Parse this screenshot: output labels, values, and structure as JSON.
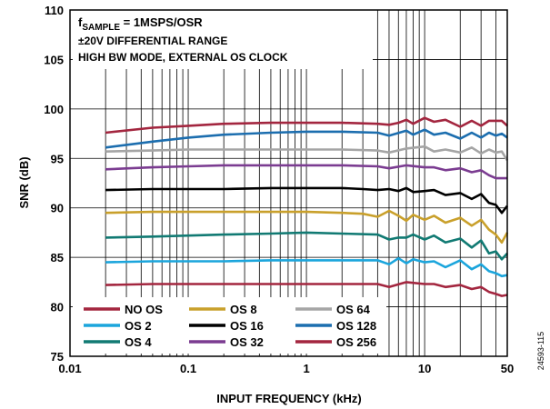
{
  "chart_data": {
    "type": "line",
    "annotation": {
      "line1_prefix": "f",
      "line1_sub": "SAMPLE",
      "line1_rest": " = 1MSPS/OSR",
      "line2": "±20V DIFFERENTIAL RANGE",
      "line3": "HIGH BW MODE, EXTERNAL OS CLOCK"
    },
    "xlabel": "INPUT FREQUENCY (kHz)",
    "ylabel": "SNR (dB)",
    "x_scale": "log",
    "xlim": [
      0.01,
      50
    ],
    "ylim": [
      75,
      110
    ],
    "x_ticks": [
      {
        "value": 0.01,
        "label": "0.01"
      },
      {
        "value": 0.1,
        "label": "0.1"
      },
      {
        "value": 1,
        "label": "1"
      },
      {
        "value": 10,
        "label": "10"
      },
      {
        "value": 50,
        "label": "50"
      }
    ],
    "y_ticks": [
      75,
      80,
      85,
      90,
      95,
      100,
      105,
      110
    ],
    "grid": true,
    "watermark": "24593-115",
    "legend": {
      "placement": "bottom-left",
      "columns": 3
    },
    "series": [
      {
        "name": "NO OS",
        "color": "#a3263f",
        "x": [
          0.02,
          0.05,
          0.1,
          0.2,
          0.5,
          1,
          2,
          4,
          5,
          7,
          10,
          12,
          15,
          20,
          25,
          30,
          35,
          40,
          45,
          50
        ],
        "y": [
          82.2,
          82.3,
          82.3,
          82.3,
          82.3,
          82.3,
          82.3,
          82.3,
          82.0,
          82.5,
          82.3,
          82.3,
          82.0,
          82.2,
          81.8,
          82.0,
          81.5,
          81.3,
          81.1,
          81.2
        ]
      },
      {
        "name": "OS 2",
        "color": "#1ba5dc",
        "x": [
          0.02,
          0.05,
          0.1,
          0.2,
          0.5,
          1,
          2,
          4,
          5,
          6,
          7,
          8,
          10,
          12,
          15,
          20,
          25,
          30,
          35,
          40,
          45,
          50
        ],
        "y": [
          84.5,
          84.6,
          84.6,
          84.6,
          84.7,
          84.7,
          84.7,
          84.7,
          84.3,
          84.9,
          84.4,
          84.8,
          84.5,
          84.6,
          84.0,
          84.7,
          83.8,
          84.3,
          83.6,
          83.4,
          83.1,
          83.2
        ]
      },
      {
        "name": "OS 4",
        "color": "#117a73",
        "x": [
          0.02,
          0.05,
          0.1,
          0.2,
          0.5,
          1,
          2,
          4,
          5,
          6,
          7,
          8,
          10,
          12,
          15,
          20,
          25,
          30,
          35,
          40,
          45,
          50
        ],
        "y": [
          87.0,
          87.1,
          87.2,
          87.3,
          87.4,
          87.5,
          87.4,
          87.3,
          86.8,
          87.0,
          87.0,
          87.3,
          86.8,
          87.2,
          86.5,
          86.9,
          86.0,
          86.7,
          85.4,
          85.6,
          84.8,
          85.4
        ]
      },
      {
        "name": "OS 8",
        "color": "#c9a02b",
        "x": [
          0.02,
          0.05,
          0.1,
          0.2,
          0.5,
          1,
          2,
          3,
          4,
          5,
          6,
          7,
          8,
          10,
          12,
          15,
          20,
          25,
          30,
          35,
          40,
          45,
          50
        ],
        "y": [
          89.5,
          89.6,
          89.6,
          89.6,
          89.6,
          89.6,
          89.5,
          89.4,
          89.1,
          89.7,
          89.2,
          88.7,
          89.3,
          88.8,
          89.2,
          88.5,
          89.0,
          88.2,
          88.8,
          87.8,
          87.3,
          86.5,
          87.5
        ]
      },
      {
        "name": "OS 16",
        "color": "#000000",
        "x": [
          0.02,
          0.05,
          0.1,
          0.2,
          0.5,
          1,
          2,
          3,
          4,
          5,
          6,
          7,
          8,
          10,
          12,
          15,
          20,
          25,
          30,
          35,
          40,
          45,
          50
        ],
        "y": [
          91.8,
          91.9,
          91.9,
          91.9,
          92.0,
          92.0,
          92.0,
          91.9,
          91.8,
          91.9,
          91.7,
          92.0,
          91.6,
          91.7,
          91.8,
          91.3,
          91.5,
          90.9,
          91.4,
          90.5,
          90.3,
          89.5,
          90.2
        ]
      },
      {
        "name": "OS 32",
        "color": "#7b3c91",
        "x": [
          0.02,
          0.05,
          0.1,
          0.2,
          0.5,
          1,
          2,
          4,
          5,
          7,
          10,
          12,
          15,
          20,
          25,
          30,
          35,
          40,
          45,
          50
        ],
        "y": [
          93.9,
          94.1,
          94.2,
          94.3,
          94.3,
          94.3,
          94.3,
          94.2,
          94.0,
          94.3,
          94.1,
          94.1,
          93.8,
          94.0,
          93.6,
          93.8,
          93.3,
          93.0,
          93.0,
          93.0
        ]
      },
      {
        "name": "OS 64",
        "color": "#a5a5a5",
        "x": [
          0.02,
          0.05,
          0.1,
          0.2,
          0.5,
          1,
          2,
          4,
          5,
          7,
          10,
          12,
          15,
          20,
          25,
          30,
          35,
          40,
          45,
          50
        ],
        "y": [
          95.7,
          95.8,
          95.9,
          95.9,
          95.9,
          95.9,
          95.9,
          95.8,
          95.6,
          96.0,
          96.2,
          95.7,
          95.9,
          95.6,
          96.1,
          95.5,
          95.9,
          95.6,
          95.7,
          94.8
        ]
      },
      {
        "name": "OS 128",
        "color": "#1c6eaf",
        "x": [
          0.02,
          0.05,
          0.1,
          0.2,
          0.5,
          1,
          2,
          4,
          5,
          7,
          8,
          10,
          12,
          15,
          20,
          25,
          30,
          35,
          40,
          45,
          50
        ],
        "y": [
          96.1,
          96.7,
          97.1,
          97.4,
          97.6,
          97.7,
          97.7,
          97.6,
          97.3,
          97.8,
          97.4,
          97.9,
          97.4,
          97.6,
          97.0,
          97.6,
          97.1,
          97.6,
          97.3,
          97.5,
          97.1
        ]
      },
      {
        "name": "OS 256",
        "color": "#a3263f",
        "x": [
          0.02,
          0.05,
          0.1,
          0.2,
          0.5,
          1,
          2,
          4,
          5,
          6,
          7,
          8,
          10,
          12,
          15,
          20,
          25,
          30,
          35,
          40,
          45,
          50
        ],
        "y": [
          97.6,
          98.1,
          98.3,
          98.5,
          98.6,
          98.6,
          98.6,
          98.5,
          98.4,
          98.6,
          98.9,
          98.5,
          99.1,
          98.7,
          98.9,
          98.2,
          98.8,
          98.3,
          98.8,
          98.8,
          98.8,
          98.3
        ]
      }
    ]
  }
}
